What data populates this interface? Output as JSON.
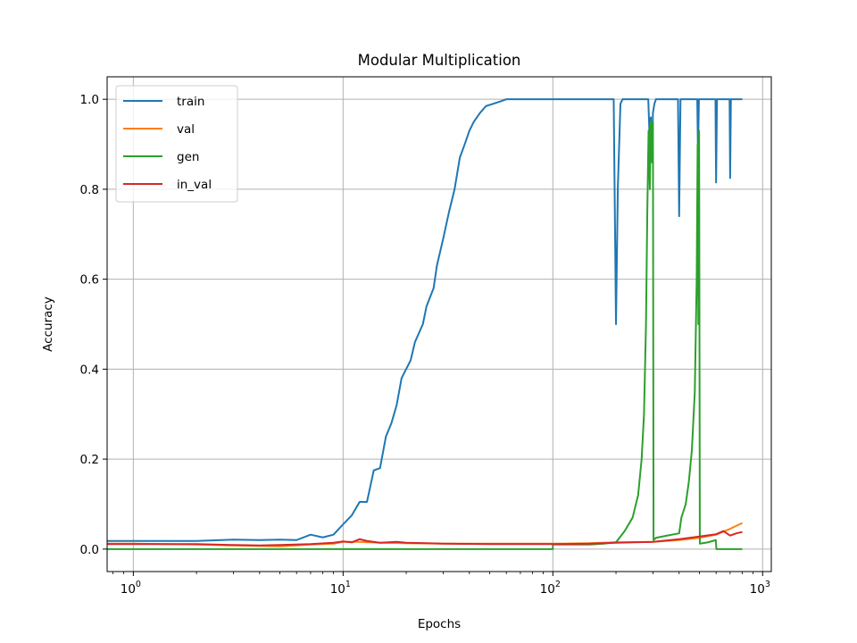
{
  "chart_data": {
    "type": "line",
    "title": "Modular Multiplication",
    "xlabel": "Epochs",
    "ylabel": "Accuracy",
    "xscale": "log",
    "xlim": [
      0.75,
      1100
    ],
    "ylim": [
      -0.05,
      1.05
    ],
    "grid": true,
    "legend_position": "top-left",
    "x_ticks": [
      {
        "value": 1,
        "base": "10",
        "exp": "0"
      },
      {
        "value": 10,
        "base": "10",
        "exp": "1"
      },
      {
        "value": 100,
        "base": "10",
        "exp": "2"
      },
      {
        "value": 1000,
        "base": "10",
        "exp": "3"
      }
    ],
    "y_ticks": [
      {
        "value": 0.0,
        "label": "0.0"
      },
      {
        "value": 0.2,
        "label": "0.2"
      },
      {
        "value": 0.4,
        "label": "0.4"
      },
      {
        "value": 0.6,
        "label": "0.6"
      },
      {
        "value": 0.8,
        "label": "0.8"
      },
      {
        "value": 1.0,
        "label": "1.0"
      }
    ],
    "series": [
      {
        "name": "train",
        "color": "#1f77b4",
        "points": [
          [
            0.75,
            0.018
          ],
          [
            1,
            0.018
          ],
          [
            2,
            0.018
          ],
          [
            3,
            0.021
          ],
          [
            4,
            0.02
          ],
          [
            5,
            0.021
          ],
          [
            6,
            0.02
          ],
          [
            7,
            0.032
          ],
          [
            8,
            0.026
          ],
          [
            9,
            0.032
          ],
          [
            10,
            0.055
          ],
          [
            11,
            0.075
          ],
          [
            12,
            0.105
          ],
          [
            13,
            0.105
          ],
          [
            14,
            0.175
          ],
          [
            15,
            0.18
          ],
          [
            16,
            0.25
          ],
          [
            17,
            0.28
          ],
          [
            18,
            0.32
          ],
          [
            19,
            0.38
          ],
          [
            21,
            0.42
          ],
          [
            22,
            0.46
          ],
          [
            24,
            0.5
          ],
          [
            25,
            0.54
          ],
          [
            27,
            0.58
          ],
          [
            28,
            0.63
          ],
          [
            30,
            0.69
          ],
          [
            32,
            0.75
          ],
          [
            34,
            0.8
          ],
          [
            36,
            0.87
          ],
          [
            38,
            0.9
          ],
          [
            40,
            0.93
          ],
          [
            42,
            0.95
          ],
          [
            45,
            0.97
          ],
          [
            48,
            0.985
          ],
          [
            52,
            0.99
          ],
          [
            56,
            0.995
          ],
          [
            60,
            1.0
          ],
          [
            195,
            1.0
          ],
          [
            200,
            0.5
          ],
          [
            204,
            0.8
          ],
          [
            210,
            0.99
          ],
          [
            215,
            1.0
          ],
          [
            285,
            1.0
          ],
          [
            290,
            0.9
          ],
          [
            293,
            0.96
          ],
          [
            297,
            0.86
          ],
          [
            300,
            0.97
          ],
          [
            305,
            0.99
          ],
          [
            310,
            1.0
          ],
          [
            395,
            1.0
          ],
          [
            400,
            0.74
          ],
          [
            406,
            1.0
          ],
          [
            488,
            1.0
          ],
          [
            492,
            0.88
          ],
          [
            497,
            1.0
          ],
          [
            596,
            1.0
          ],
          [
            600,
            0.815
          ],
          [
            606,
            1.0
          ],
          [
            696,
            1.0
          ],
          [
            700,
            0.825
          ],
          [
            706,
            1.0
          ],
          [
            800,
            1.0
          ]
        ]
      },
      {
        "name": "val",
        "color": "#ff7f0e",
        "points": [
          [
            0.75,
            0.012
          ],
          [
            1,
            0.012
          ],
          [
            2,
            0.01
          ],
          [
            3,
            0.008
          ],
          [
            5,
            0.006
          ],
          [
            7,
            0.01
          ],
          [
            9,
            0.012
          ],
          [
            10,
            0.016
          ],
          [
            12,
            0.016
          ],
          [
            15,
            0.014
          ],
          [
            20,
            0.013
          ],
          [
            30,
            0.012
          ],
          [
            50,
            0.012
          ],
          [
            100,
            0.012
          ],
          [
            150,
            0.013
          ],
          [
            200,
            0.015
          ],
          [
            300,
            0.016
          ],
          [
            400,
            0.02
          ],
          [
            500,
            0.025
          ],
          [
            600,
            0.032
          ],
          [
            700,
            0.045
          ],
          [
            800,
            0.058
          ]
        ]
      },
      {
        "name": "gen",
        "color": "#2ca02c",
        "points": [
          [
            0.75,
            0.0
          ],
          [
            100,
            0.0
          ],
          [
            100,
            0.01
          ],
          [
            150,
            0.01
          ],
          [
            175,
            0.012
          ],
          [
            200,
            0.015
          ],
          [
            220,
            0.04
          ],
          [
            240,
            0.07
          ],
          [
            255,
            0.12
          ],
          [
            265,
            0.2
          ],
          [
            272,
            0.3
          ],
          [
            278,
            0.5
          ],
          [
            282,
            0.75
          ],
          [
            286,
            0.93
          ],
          [
            290,
            0.8
          ],
          [
            293,
            0.95
          ],
          [
            297,
            0.86
          ],
          [
            300,
            0.95
          ],
          [
            302,
            0.02
          ],
          [
            310,
            0.025
          ],
          [
            350,
            0.03
          ],
          [
            400,
            0.035
          ],
          [
            410,
            0.07
          ],
          [
            430,
            0.1
          ],
          [
            445,
            0.15
          ],
          [
            460,
            0.22
          ],
          [
            475,
            0.35
          ],
          [
            485,
            0.6
          ],
          [
            490,
            0.9
          ],
          [
            494,
            0.5
          ],
          [
            498,
            0.93
          ],
          [
            502,
            0.012
          ],
          [
            550,
            0.015
          ],
          [
            598,
            0.02
          ],
          [
            602,
            0.0
          ],
          [
            800,
            0.0
          ]
        ]
      },
      {
        "name": "in_val",
        "color": "#d62728",
        "points": [
          [
            0.75,
            0.011
          ],
          [
            1,
            0.011
          ],
          [
            2,
            0.011
          ],
          [
            3,
            0.009
          ],
          [
            4,
            0.008
          ],
          [
            5,
            0.009
          ],
          [
            7,
            0.011
          ],
          [
            9,
            0.014
          ],
          [
            10,
            0.017
          ],
          [
            11,
            0.015
          ],
          [
            12,
            0.022
          ],
          [
            13,
            0.018
          ],
          [
            15,
            0.014
          ],
          [
            18,
            0.016
          ],
          [
            20,
            0.014
          ],
          [
            25,
            0.013
          ],
          [
            30,
            0.012
          ],
          [
            50,
            0.011
          ],
          [
            100,
            0.011
          ],
          [
            150,
            0.012
          ],
          [
            200,
            0.014
          ],
          [
            300,
            0.016
          ],
          [
            400,
            0.022
          ],
          [
            500,
            0.028
          ],
          [
            600,
            0.033
          ],
          [
            650,
            0.04
          ],
          [
            700,
            0.03
          ],
          [
            750,
            0.035
          ],
          [
            800,
            0.038
          ]
        ]
      }
    ]
  }
}
